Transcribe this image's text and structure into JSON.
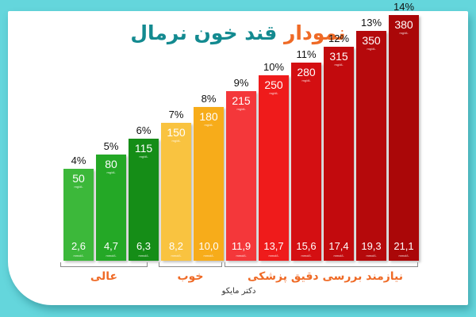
{
  "title": {
    "accent": "نمودار",
    "main": "قند خون نرمال"
  },
  "brand": "دکتر مایکو",
  "groups": [
    {
      "label": "عالی",
      "bars": [
        0,
        1,
        2
      ]
    },
    {
      "label": "خوب",
      "bars": [
        3,
        4
      ]
    },
    {
      "label": "نیازمند بررسی دقیق پزشکی",
      "bars": [
        5,
        6,
        7,
        8,
        9,
        10
      ]
    }
  ],
  "units": {
    "mg": "mg/dL",
    "mmol": "mmol/L"
  },
  "colors": {
    "frame": "#64d6dc",
    "title_accent": "#ef6a26",
    "title_main": "#138a90",
    "group_label": "#ef6a26"
  },
  "chart_data": {
    "type": "bar",
    "title": "نمودار قند خون نرمال",
    "xlabel": "",
    "ylabel": "",
    "categories": [
      "4%",
      "5%",
      "6%",
      "7%",
      "8%",
      "9%",
      "10%",
      "11%",
      "12%",
      "13%",
      "14%"
    ],
    "series": [
      {
        "name": "mg/dL",
        "values": [
          50,
          80,
          115,
          150,
          180,
          215,
          250,
          280,
          315,
          350,
          380
        ]
      },
      {
        "name": "mmol/L",
        "values": [
          2.6,
          4.7,
          6.3,
          8.2,
          10.0,
          11.9,
          13.7,
          15.6,
          17.4,
          19.3,
          21.1
        ]
      }
    ],
    "value_labels_mmol": [
      "2,6",
      "4,7",
      "6,3",
      "8,2",
      "10,0",
      "11,9",
      "13,7",
      "15,6",
      "17,4",
      "19,3",
      "21,1"
    ],
    "bar_colors": [
      "#3cb83a",
      "#24a826",
      "#158d17",
      "#f9c340",
      "#f7ac1a",
      "#f4373a",
      "#ef1b1b",
      "#d40f12",
      "#c20a0d",
      "#b5090b",
      "#aa0708"
    ],
    "group_labels": [
      "عالی",
      "خوب",
      "نیازمند بررسی دقیق پزشکی"
    ],
    "grid": false,
    "legend": "none"
  }
}
